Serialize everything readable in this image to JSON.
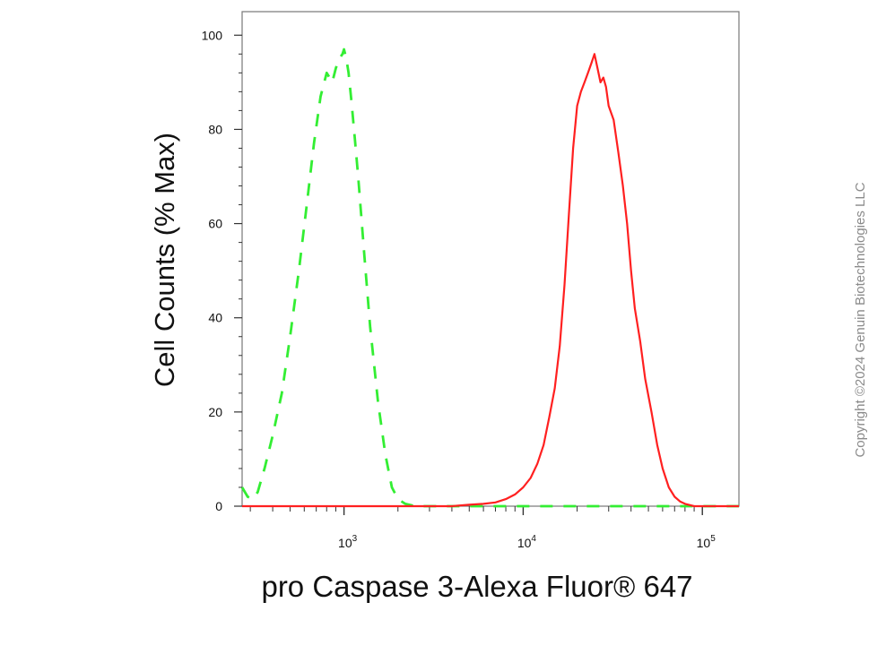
{
  "chart_data": {
    "type": "area",
    "xscale": "log",
    "xlim": [
      270,
      160000
    ],
    "ylim": [
      0,
      105
    ],
    "yticks": [
      0,
      20,
      40,
      60,
      80,
      100
    ],
    "xticks": [
      {
        "value": 1000,
        "base": "10",
        "exp": "3"
      },
      {
        "value": 10000,
        "base": "10",
        "exp": "4"
      },
      {
        "value": 100000,
        "base": "10",
        "exp": "5"
      }
    ],
    "ylabel": "Cell Counts (% Max)",
    "xlabel": "pro Caspase 3-Alexa Fluor® 647",
    "grid": false,
    "legend": "none",
    "series": [
      {
        "color": "#33ee33",
        "style": "dashed",
        "x": [
          270,
          290,
          310,
          330,
          360,
          400,
          450,
          500,
          560,
          620,
          680,
          740,
          800,
          860,
          900,
          940,
          980,
          1000,
          1030,
          1060,
          1100,
          1150,
          1200,
          1300,
          1400,
          1550,
          1700,
          1850,
          2000,
          2200,
          2500,
          3000,
          4000,
          6000,
          10000,
          20000,
          50000,
          160000
        ],
        "y": [
          4,
          2,
          1.5,
          3,
          8,
          15,
          24,
          36,
          50,
          64,
          77,
          87,
          92,
          90,
          93,
          95,
          96,
          97,
          95,
          92,
          86,
          78,
          70,
          53,
          38,
          22,
          11,
          4,
          1.5,
          0.5,
          0,
          0,
          0,
          0,
          0,
          0,
          0,
          0
        ]
      },
      {
        "color": "#ff2020",
        "style": "solid",
        "x": [
          270,
          2000,
          4000,
          5000,
          6000,
          7000,
          8000,
          9000,
          10000,
          11000,
          12000,
          13000,
          14000,
          15000,
          16000,
          17000,
          18000,
          19000,
          20000,
          21000,
          22000,
          23000,
          24000,
          25000,
          26000,
          27000,
          28000,
          29000,
          30000,
          32000,
          34000,
          36000,
          38000,
          40000,
          42000,
          45000,
          48000,
          52000,
          56000,
          60000,
          65000,
          70000,
          75000,
          80000,
          90000,
          100000,
          160000
        ],
        "y": [
          0,
          0,
          0,
          0.3,
          0.5,
          0.8,
          1.5,
          2.5,
          4,
          6,
          9,
          13,
          19,
          25,
          34,
          47,
          62,
          76,
          85,
          88,
          90,
          92,
          94,
          96,
          93,
          90,
          91,
          89,
          85,
          82,
          75,
          68,
          60,
          50,
          42,
          35,
          27,
          20,
          13,
          8,
          4,
          2,
          1,
          0.5,
          0,
          0,
          0
        ]
      }
    ]
  },
  "watermark": "Copyright ©2024 Genuin Biotechnologies LLC"
}
